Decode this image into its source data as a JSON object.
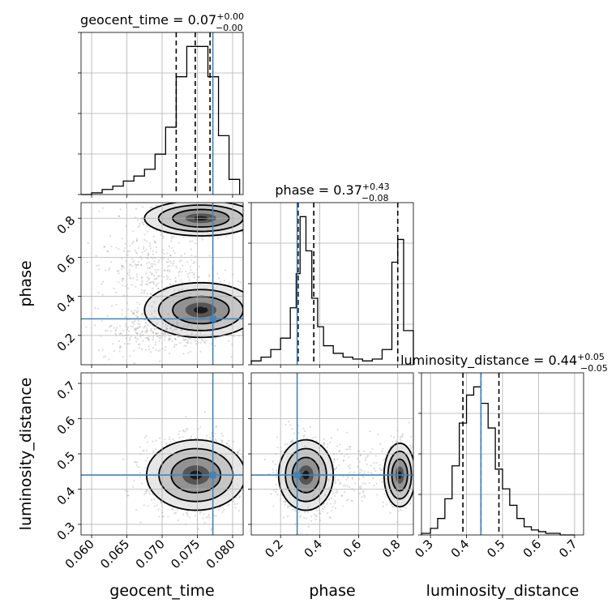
{
  "chart_data": {
    "type": "corner",
    "parameters": [
      "geocent_time",
      "phase",
      "luminosity_distance"
    ],
    "colors": {
      "truth": "#4682b4",
      "hist": "#000000",
      "grid": "#b0b0b0",
      "points": "#9a9a9a"
    },
    "grid": true,
    "panels": [
      {
        "param": "geocent_time",
        "title": "geocent_time = 0.07",
        "title_sup": "+0.00",
        "title_sub": "−0.00",
        "xlim": [
          0.0585,
          0.0815
        ],
        "bin_edges": [
          0.0585,
          0.06,
          0.0615,
          0.063,
          0.0645,
          0.066,
          0.0675,
          0.069,
          0.0705,
          0.072,
          0.0735,
          0.075,
          0.0765,
          0.078,
          0.0795,
          0.081
        ],
        "counts": [
          0,
          1,
          3,
          5,
          8,
          11,
          15,
          24,
          40,
          70,
          88,
          88,
          70,
          35,
          9
        ],
        "quantiles": [
          0.072,
          0.0747,
          0.0768
        ],
        "truth": 0.0772
      },
      {
        "param": "phase",
        "title": "phase = 0.37",
        "title_sup": "+0.43",
        "title_sub": "−0.08",
        "xlim": [
          0.05,
          0.88
        ],
        "bin_edges": [
          0.05,
          0.1,
          0.15,
          0.2,
          0.25,
          0.28,
          0.3,
          0.33,
          0.36,
          0.39,
          0.42,
          0.47,
          0.52,
          0.57,
          0.62,
          0.67,
          0.72,
          0.77,
          0.8,
          0.83,
          0.88
        ],
        "counts": [
          2,
          4,
          8,
          14,
          30,
          48,
          78,
          60,
          35,
          20,
          10,
          6,
          4,
          3,
          2,
          3,
          8,
          54,
          66,
          18
        ],
        "quantiles": [
          0.29,
          0.37,
          0.8
        ],
        "truth": 0.285
      },
      {
        "param": "luminosity_distance",
        "title": "luminosity_distance = 0.44",
        "title_sup": "+0.05",
        "title_sub": "−0.05",
        "xlim": [
          0.275,
          0.725
        ],
        "bin_edges": [
          0.275,
          0.3,
          0.32,
          0.34,
          0.36,
          0.38,
          0.4,
          0.42,
          0.44,
          0.46,
          0.48,
          0.5,
          0.52,
          0.54,
          0.56,
          0.58,
          0.6,
          0.62,
          0.64,
          0.66,
          0.68,
          0.7
        ],
        "counts": [
          1,
          4,
          10,
          22,
          42,
          68,
          85,
          90,
          80,
          65,
          40,
          28,
          18,
          10,
          5,
          3,
          2,
          1,
          1,
          0,
          0
        ],
        "quantiles": [
          0.39,
          0.44,
          0.49
        ],
        "truth": 0.44
      }
    ],
    "pairs": [
      {
        "x": "geocent_time",
        "y": "phase",
        "xlim": [
          0.0585,
          0.0815
        ],
        "ylim": [
          0.05,
          0.88
        ],
        "truth": [
          0.0772,
          0.285
        ],
        "clusters": [
          {
            "center": [
              0.0755,
              0.8
            ],
            "spread": [
              0.004,
              0.045
            ],
            "count": 700
          },
          {
            "center": [
              0.0755,
              0.33
            ],
            "spread": [
              0.004,
              0.07
            ],
            "count": 1000
          },
          {
            "center": [
              0.0685,
              0.22
            ],
            "spread": [
              0.004,
              0.06
            ],
            "count": 250
          },
          {
            "center": [
              0.068,
              0.55
            ],
            "spread": [
              0.0035,
              0.08
            ],
            "count": 250
          }
        ]
      },
      {
        "x": "geocent_time",
        "y": "luminosity_distance",
        "xlim": [
          0.0585,
          0.0815
        ],
        "ylim": [
          0.27,
          0.73
        ],
        "truth": [
          0.0772,
          0.44
        ],
        "clusters": [
          {
            "center": [
              0.0748,
              0.44
            ],
            "spread": [
              0.0035,
              0.05
            ],
            "count": 1500
          }
        ]
      },
      {
        "x": "phase",
        "y": "luminosity_distance",
        "xlim": [
          0.05,
          0.88
        ],
        "ylim": [
          0.27,
          0.73
        ],
        "truth": [
          0.285,
          0.44
        ],
        "clusters": [
          {
            "center": [
              0.33,
              0.44
            ],
            "spread": [
              0.07,
              0.05
            ],
            "count": 1000
          },
          {
            "center": [
              0.81,
              0.44
            ],
            "spread": [
              0.04,
              0.045
            ],
            "count": 500
          },
          {
            "center": [
              0.55,
              0.44
            ],
            "spread": [
              0.12,
              0.05
            ],
            "count": 150
          }
        ]
      }
    ],
    "ticks": {
      "geocent_time": {
        "values": [
          0.06,
          0.065,
          0.07,
          0.075,
          0.08
        ],
        "labels": [
          "0.060",
          "0.065",
          "0.070",
          "0.075",
          "0.080"
        ]
      },
      "phase": {
        "values": [
          0.2,
          0.4,
          0.6,
          0.8
        ],
        "labels": [
          "0.2",
          "0.4",
          "0.6",
          "0.8"
        ]
      },
      "luminosity_distance_x": {
        "values": [
          0.3,
          0.4,
          0.5,
          0.6,
          0.7
        ],
        "labels": [
          "0.3",
          "0.4",
          "0.5",
          "0.6",
          "0.7"
        ]
      },
      "luminosity_distance_y": {
        "values": [
          0.3,
          0.4,
          0.5,
          0.6,
          0.7
        ],
        "labels": [
          "0.3",
          "0.4",
          "0.5",
          "0.6",
          "0.7"
        ]
      }
    },
    "axis_labels": {
      "x": [
        "geocent_time",
        "phase",
        "luminosity_distance"
      ],
      "y": [
        "phase",
        "luminosity_distance"
      ]
    }
  }
}
